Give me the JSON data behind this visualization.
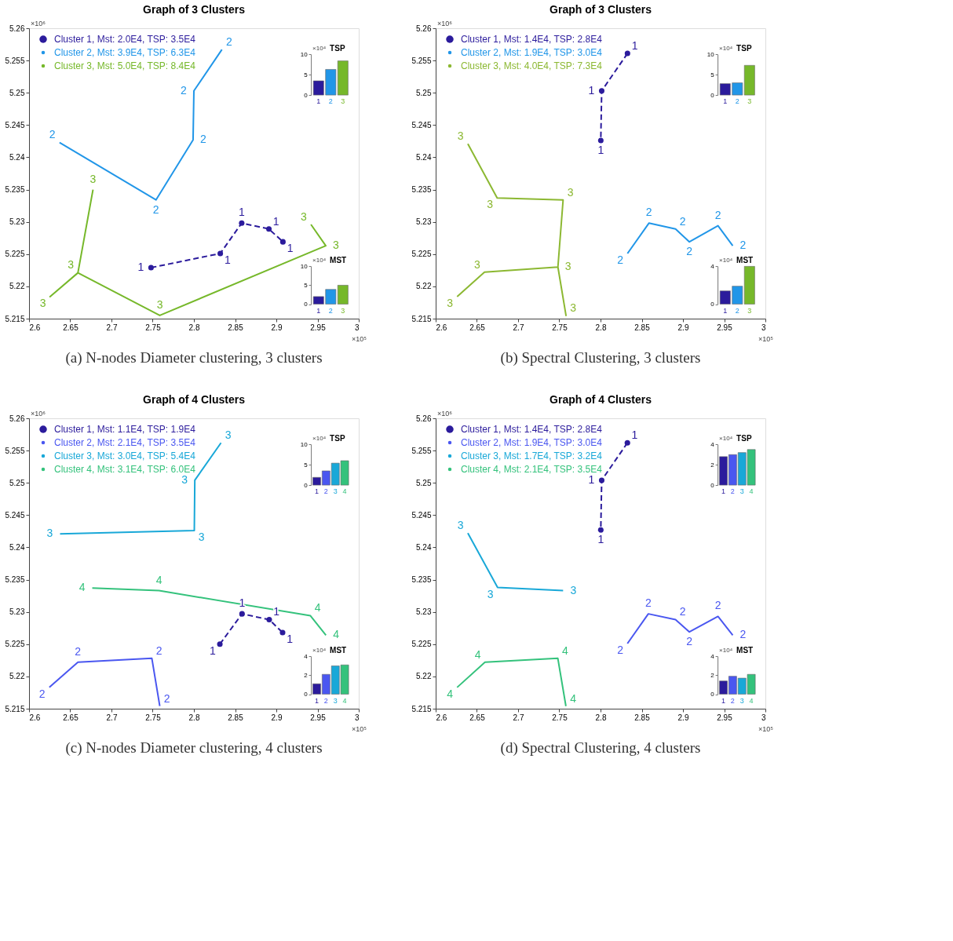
{
  "chart_data": [
    {
      "type": "line",
      "title": "Graph of  3 Clusters",
      "xlabel": "×10⁵",
      "ylabel": "×10⁶",
      "legend": "top left",
      "xlim": [
        2.6,
        3
      ],
      "ylim": [
        5.215,
        5.26
      ],
      "xticks": [
        2.6,
        2.65,
        2.7,
        2.75,
        2.8,
        2.85,
        2.9,
        2.95,
        3
      ],
      "yticks": [
        5.215,
        5.22,
        5.225,
        5.23,
        5.235,
        5.24,
        5.245,
        5.25,
        5.255,
        5.26
      ],
      "annotations": [
        "(a) N-nodes Diameter clustering, 3 clusters",
        {
          "text": "1",
          "x": 2.748,
          "y": 5.2229
        },
        {
          "text": "1",
          "x": 2.832,
          "y": 5.2251
        },
        {
          "text": "1",
          "x": 2.858,
          "y": 5.2298
        },
        {
          "text": "1",
          "x": 2.891,
          "y": 5.2289
        },
        {
          "text": "1",
          "x": 2.908,
          "y": 5.2269
        },
        {
          "text": "2",
          "x": 2.637,
          "y": 5.2423
        },
        {
          "text": "2",
          "x": 2.754,
          "y": 5.2334
        },
        {
          "text": "2",
          "x": 2.799,
          "y": 5.2427
        },
        {
          "text": "2",
          "x": 2.8,
          "y": 5.2503
        },
        {
          "text": "2",
          "x": 2.834,
          "y": 5.2567
        },
        {
          "text": "3",
          "x": 2.6776,
          "y": 5.235
        },
        {
          "text": "3",
          "x": 2.6593,
          "y": 5.2221
        },
        {
          "text": "3",
          "x": 2.6255,
          "y": 5.2184
        },
        {
          "text": "3",
          "x": 2.7586,
          "y": 5.2155
        },
        {
          "text": "3",
          "x": 2.96,
          "y": 5.2263
        },
        {
          "text": "3",
          "x": 2.942,
          "y": 5.2296
        }
      ],
      "series": [
        {
          "name": "Cluster 1, Mst: 2.0E4, TSP: 3.5E4",
          "color": "#2b1b9c",
          "line_style": "dashed",
          "marker": "circle",
          "x": [
            2.748,
            2.832,
            2.858,
            2.891,
            2.908
          ],
          "values": [
            5.2229,
            5.2251,
            5.2298,
            5.2289,
            5.2269
          ]
        },
        {
          "name": "Cluster 2, Mst: 3.9E4, TSP: 6.3E4",
          "color": "#2196e8",
          "line_style": "solid",
          "x": [
            2.637,
            2.754,
            2.799,
            2.8,
            2.834
          ],
          "values": [
            5.2423,
            5.2334,
            5.2427,
            5.2503,
            5.2567
          ]
        },
        {
          "name": "Cluster 3, Mst: 5.0E4, TSP: 8.4E4",
          "color": "#76b82a",
          "line_style": "solid",
          "x": [
            2.6776,
            2.6593,
            2.6255,
            2.6593,
            2.7586,
            2.96,
            2.942
          ],
          "values": [
            5.235,
            5.2221,
            5.2184,
            5.2221,
            5.2155,
            5.2263,
            5.2296
          ]
        }
      ]
    },
    {
      "type": "bar",
      "title": "TSP",
      "ylabel": "×10⁴",
      "categories": [
        "1",
        "2",
        "3"
      ],
      "values": [
        3.5,
        6.3,
        8.4
      ],
      "colors": [
        "#2b1b9c",
        "#2196e8",
        "#76b82a"
      ],
      "ylim": [
        0,
        10
      ],
      "yticks": [
        0,
        5,
        10
      ]
    },
    {
      "type": "bar",
      "title": "MST",
      "ylabel": "×10⁴",
      "categories": [
        "1",
        "2",
        "3"
      ],
      "values": [
        2.0,
        3.9,
        5.0
      ],
      "colors": [
        "#2b1b9c",
        "#2196e8",
        "#76b82a"
      ],
      "ylim": [
        0,
        10
      ],
      "yticks": [
        0,
        5,
        10
      ]
    },
    {
      "type": "line",
      "title": "Graph of  3 Clusters",
      "xlabel": "×10⁵",
      "ylabel": "×10⁶",
      "legend": "top left",
      "xlim": [
        2.6,
        3
      ],
      "ylim": [
        5.215,
        5.26
      ],
      "xticks": [
        2.6,
        2.65,
        2.7,
        2.75,
        2.8,
        2.85,
        2.9,
        2.95,
        3
      ],
      "yticks": [
        5.215,
        5.22,
        5.225,
        5.23,
        5.235,
        5.24,
        5.245,
        5.25,
        5.255,
        5.26
      ],
      "annotations": [
        "(b) Spectral Clustering, 3 clusters",
        {
          "text": "1",
          "x": 2.8327,
          "y": 5.2561
        },
        {
          "text": "1",
          "x": 2.8014,
          "y": 5.2503
        },
        {
          "text": "1",
          "x": 2.8003,
          "y": 5.2426
        },
        {
          "text": "2",
          "x": 2.8327,
          "y": 5.2251
        },
        {
          "text": "2",
          "x": 2.8587,
          "y": 5.2298
        },
        {
          "text": "2",
          "x": 2.891,
          "y": 5.2289
        },
        {
          "text": "2",
          "x": 2.9078,
          "y": 5.2269
        },
        {
          "text": "2",
          "x": 2.9425,
          "y": 5.2294
        },
        {
          "text": "2",
          "x": 2.9604,
          "y": 5.2263
        },
        {
          "text": "3",
          "x": 2.639,
          "y": 5.2421
        },
        {
          "text": "3",
          "x": 2.6746,
          "y": 5.2337
        },
        {
          "text": "3",
          "x": 2.7546,
          "y": 5.2334
        },
        {
          "text": "3",
          "x": 2.7483,
          "y": 5.223
        },
        {
          "text": "3",
          "x": 2.7581,
          "y": 5.2155
        },
        {
          "text": "3",
          "x": 2.6592,
          "y": 5.2222
        },
        {
          "text": "3",
          "x": 2.626,
          "y": 5.2184
        }
      ],
      "series": [
        {
          "name": "Cluster 1, Mst: 1.4E4, TSP: 2.8E4",
          "color": "#2b1b9c",
          "line_style": "dashed",
          "marker": "circle",
          "x": [
            2.8327,
            2.8014,
            2.8003
          ],
          "values": [
            5.2561,
            5.2503,
            5.2426
          ]
        },
        {
          "name": "Cluster 2, Mst: 1.9E4, TSP: 3.0E4",
          "color": "#2196e8",
          "line_style": "solid",
          "x": [
            2.8327,
            2.8587,
            2.891,
            2.9078,
            2.9425,
            2.9604
          ],
          "values": [
            5.2251,
            5.2298,
            5.2289,
            5.2269,
            5.2294,
            5.2263
          ]
        },
        {
          "name": "Cluster 3, Mst: 4.0E4, TSP: 7.3E4",
          "color": "#8cb832",
          "line_style": "solid",
          "x": [
            2.639,
            2.6746,
            2.7546,
            2.7483,
            2.7581,
            2.7483,
            2.6592,
            2.626
          ],
          "values": [
            5.2421,
            5.2337,
            5.2334,
            5.223,
            5.2155,
            5.223,
            5.2222,
            5.2184
          ]
        }
      ]
    },
    {
      "type": "bar",
      "title": "TSP",
      "ylabel": "×10⁴",
      "categories": [
        "1",
        "2",
        "3"
      ],
      "values": [
        2.8,
        3.0,
        7.3
      ],
      "colors": [
        "#2b1b9c",
        "#2196e8",
        "#76b82a"
      ],
      "ylim": [
        0,
        10
      ],
      "yticks": [
        0,
        5,
        10
      ]
    },
    {
      "type": "bar",
      "title": "MST",
      "ylabel": "×10⁴",
      "categories": [
        "1",
        "2",
        "3"
      ],
      "values": [
        1.4,
        1.9,
        4.0
      ],
      "colors": [
        "#2b1b9c",
        "#2196e8",
        "#76b82a"
      ],
      "ylim": [
        0,
        4
      ],
      "yticks": [
        0,
        4
      ]
    },
    {
      "type": "line",
      "title": "Graph of  4 Clusters",
      "xlabel": "×10⁵",
      "ylabel": "×10⁶",
      "legend": "top left",
      "xlim": [
        2.6,
        3
      ],
      "ylim": [
        5.215,
        5.26
      ],
      "xticks": [
        2.6,
        2.65,
        2.7,
        2.75,
        2.8,
        2.85,
        2.9,
        2.95,
        3
      ],
      "yticks": [
        5.215,
        5.22,
        5.225,
        5.23,
        5.235,
        5.24,
        5.245,
        5.25,
        5.255,
        5.26
      ],
      "annotations": [
        "(c) N-nodes Diameter clustering, 4 clusters",
        {
          "text": "1",
          "x": 2.8315,
          "y": 5.225
        },
        {
          "text": "1",
          "x": 2.8584,
          "y": 5.2297
        },
        {
          "text": "1",
          "x": 2.8914,
          "y": 5.2288
        },
        {
          "text": "1",
          "x": 2.9076,
          "y": 5.2268
        },
        {
          "text": "2",
          "x": 2.6246,
          "y": 5.2183
        },
        {
          "text": "2",
          "x": 2.6593,
          "y": 5.2222
        },
        {
          "text": "2",
          "x": 2.749,
          "y": 5.2228
        },
        {
          "text": "2",
          "x": 2.7586,
          "y": 5.2154
        },
        {
          "text": "3",
          "x": 2.6376,
          "y": 5.2421
        },
        {
          "text": "3",
          "x": 2.8005,
          "y": 5.2426
        },
        {
          "text": "3",
          "x": 2.8011,
          "y": 5.2504
        },
        {
          "text": "3",
          "x": 2.8329,
          "y": 5.2562
        },
        {
          "text": "4",
          "x": 2.6767,
          "y": 5.2337
        },
        {
          "text": "4",
          "x": 2.7577,
          "y": 5.2333
        },
        {
          "text": "4",
          "x": 2.9414,
          "y": 5.2294
        },
        {
          "text": "4",
          "x": 2.9602,
          "y": 5.2264
        }
      ],
      "series": [
        {
          "name": "Cluster 1, Mst: 1.1E4, TSP: 1.9E4",
          "color": "#2b1b9c",
          "line_style": "dashed",
          "marker": "circle",
          "x": [
            2.8315,
            2.8584,
            2.8914,
            2.9076
          ],
          "values": [
            5.225,
            5.2297,
            5.2288,
            5.2268
          ]
        },
        {
          "name": "Cluster 2, Mst: 2.1E4, TSP: 3.5E4",
          "color": "#4a57f0",
          "line_style": "solid",
          "x": [
            2.6246,
            2.6593,
            2.749,
            2.7586
          ],
          "values": [
            5.2183,
            5.2222,
            5.2228,
            5.2154
          ]
        },
        {
          "name": "Cluster 3, Mst: 3.0E4, TSP: 5.4E4",
          "color": "#19a8d8",
          "line_style": "solid",
          "x": [
            2.6376,
            2.8005,
            2.8011,
            2.8329
          ],
          "values": [
            5.2421,
            5.2426,
            5.2504,
            5.2562
          ]
        },
        {
          "name": "Cluster 4, Mst: 3.1E4, TSP: 6.0E4",
          "color": "#34c27c",
          "line_style": "solid",
          "x": [
            2.6767,
            2.7577,
            2.9414,
            2.9602
          ],
          "values": [
            5.2337,
            5.2333,
            5.2294,
            5.2264
          ]
        }
      ]
    },
    {
      "type": "bar",
      "title": "TSP",
      "ylabel": "×10⁴",
      "categories": [
        "1",
        "2",
        "3",
        "4"
      ],
      "values": [
        1.9,
        3.5,
        5.4,
        6.0
      ],
      "colors": [
        "#2b1b9c",
        "#4a57f0",
        "#19a8d8",
        "#34c27c"
      ],
      "ylim": [
        0,
        10
      ],
      "yticks": [
        0,
        5,
        10
      ]
    },
    {
      "type": "bar",
      "title": "MST",
      "ylabel": "×10⁴",
      "categories": [
        "1",
        "2",
        "3",
        "4"
      ],
      "values": [
        1.1,
        2.1,
        3.0,
        3.1
      ],
      "colors": [
        "#2b1b9c",
        "#4a57f0",
        "#19a8d8",
        "#34c27c"
      ],
      "ylim": [
        0,
        4
      ],
      "yticks": [
        0,
        2,
        4
      ]
    },
    {
      "type": "line",
      "title": "Graph of  4 Clusters",
      "xlabel": "×10⁵",
      "ylabel": "×10⁶",
      "legend": "top left",
      "xlim": [
        2.6,
        3
      ],
      "ylim": [
        5.215,
        5.26
      ],
      "xticks": [
        2.6,
        2.65,
        2.7,
        2.75,
        2.8,
        2.85,
        2.9,
        2.95,
        3
      ],
      "yticks": [
        5.215,
        5.22,
        5.225,
        5.23,
        5.235,
        5.24,
        5.245,
        5.25,
        5.255,
        5.26
      ],
      "annotations": [
        "(d) Spectral Clustering, 4 clusters",
        {
          "text": "1",
          "x": 2.8326,
          "y": 5.2562
        },
        {
          "text": "1",
          "x": 2.8014,
          "y": 5.2504
        },
        {
          "text": "1",
          "x": 2.8003,
          "y": 5.2427
        },
        {
          "text": "2",
          "x": 2.8326,
          "y": 5.2251
        },
        {
          "text": "2",
          "x": 2.858,
          "y": 5.2297
        },
        {
          "text": "2",
          "x": 2.891,
          "y": 5.2288
        },
        {
          "text": "2",
          "x": 2.9078,
          "y": 5.2269
        },
        {
          "text": "2",
          "x": 2.9425,
          "y": 5.2293
        },
        {
          "text": "2",
          "x": 2.9604,
          "y": 5.2264
        },
        {
          "text": "3",
          "x": 2.639,
          "y": 5.2422
        },
        {
          "text": "3",
          "x": 2.6751,
          "y": 5.2338
        },
        {
          "text": "3",
          "x": 2.7546,
          "y": 5.2333
        },
        {
          "text": "4",
          "x": 2.626,
          "y": 5.2183
        },
        {
          "text": "4",
          "x": 2.6598,
          "y": 5.2222
        },
        {
          "text": "4",
          "x": 2.7482,
          "y": 5.2228
        },
        {
          "text": "4",
          "x": 2.758,
          "y": 5.2154
        }
      ],
      "series": [
        {
          "name": "Cluster 1, Mst: 1.4E4, TSP: 2.8E4",
          "color": "#2b1b9c",
          "line_style": "dashed",
          "marker": "circle",
          "x": [
            2.8326,
            2.8014,
            2.8003
          ],
          "values": [
            5.2562,
            5.2504,
            5.2427
          ]
        },
        {
          "name": "Cluster 2, Mst: 1.9E4, TSP: 3.0E4",
          "color": "#4a57f0",
          "line_style": "solid",
          "x": [
            2.8326,
            2.858,
            2.891,
            2.9078,
            2.9425,
            2.9604
          ],
          "values": [
            5.2251,
            5.2297,
            5.2288,
            5.2269,
            5.2293,
            5.2264
          ]
        },
        {
          "name": "Cluster 3, Mst: 1.7E4, TSP: 3.2E4",
          "color": "#19a8d8",
          "line_style": "solid",
          "x": [
            2.639,
            2.6751,
            2.7546
          ],
          "values": [
            5.2422,
            5.2338,
            5.2333
          ]
        },
        {
          "name": "Cluster 4, Mst: 2.1E4, TSP: 3.5E4",
          "color": "#34c27c",
          "line_style": "solid",
          "x": [
            2.626,
            2.6598,
            2.7482,
            2.758
          ],
          "values": [
            5.2183,
            5.2222,
            5.2228,
            5.2154
          ]
        }
      ]
    },
    {
      "type": "bar",
      "title": "TSP",
      "ylabel": "×10⁴",
      "categories": [
        "1",
        "2",
        "3",
        "4"
      ],
      "values": [
        2.8,
        3.0,
        3.2,
        3.5
      ],
      "colors": [
        "#2b1b9c",
        "#4a57f0",
        "#19a8d8",
        "#34c27c"
      ],
      "ylim": [
        0,
        4
      ],
      "yticks": [
        0,
        2,
        4
      ]
    },
    {
      "type": "bar",
      "title": "MST",
      "ylabel": "×10⁴",
      "categories": [
        "1",
        "2",
        "3",
        "4"
      ],
      "values": [
        1.4,
        1.9,
        1.7,
        2.1
      ],
      "colors": [
        "#2b1b9c",
        "#4a57f0",
        "#19a8d8",
        "#34c27c"
      ],
      "ylim": [
        0,
        4
      ],
      "yticks": [
        0,
        2,
        4
      ]
    }
  ]
}
